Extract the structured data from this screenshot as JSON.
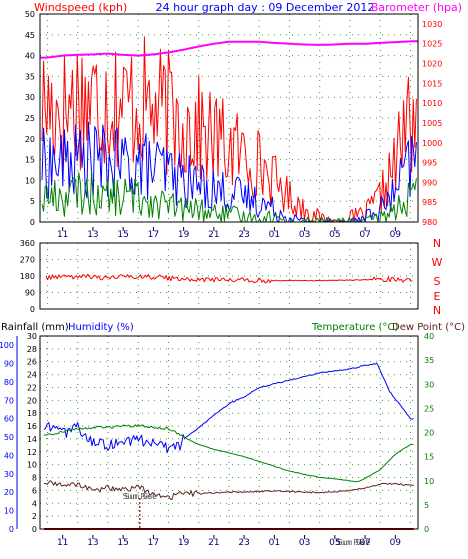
{
  "chart_data": [
    {
      "type": "line",
      "title": "24 hour graph day : 09 December 2012",
      "left_axis_label": "Windspeed (kph)",
      "right_axis_label": "Barometer (hpa)",
      "x_tick_labels": [
        "11",
        "13",
        "15",
        "17",
        "19",
        "21",
        "23",
        "01",
        "03",
        "05",
        "07",
        "09"
      ],
      "y_left_ticks": [
        0,
        5,
        10,
        15,
        20,
        25,
        30,
        35,
        40,
        45,
        50
      ],
      "y_left_range": [
        0,
        50
      ],
      "y_right_ticks": [
        980,
        985,
        990,
        995,
        1000,
        1005,
        1010,
        1015,
        1020,
        1025,
        1030
      ],
      "y_right_range": [
        980,
        1032.5
      ],
      "grid": true,
      "series": [
        {
          "role": "gust",
          "color": "#ff0000",
          "x": [
            0,
            1,
            2,
            3,
            4,
            5,
            6,
            7,
            8,
            9,
            10,
            11,
            12,
            13,
            14,
            15,
            16,
            17,
            18,
            19,
            20,
            21,
            22,
            23,
            24
          ],
          "values": [
            28,
            27,
            30,
            29,
            30,
            28,
            29,
            27,
            26,
            24,
            22,
            20,
            18,
            16,
            14,
            10,
            6,
            3,
            1,
            0,
            1,
            2,
            6,
            14,
            26
          ]
        },
        {
          "role": "average",
          "color": "#0000ff",
          "x": [
            0,
            1,
            2,
            3,
            4,
            5,
            6,
            7,
            8,
            9,
            10,
            11,
            12,
            13,
            14,
            15,
            16,
            17,
            18,
            19,
            20,
            21,
            22,
            23,
            24
          ],
          "values": [
            14,
            14,
            15,
            15,
            14,
            14,
            14,
            13,
            12,
            10,
            9,
            8,
            7,
            6,
            5,
            3,
            1,
            0,
            0,
            0,
            0,
            1,
            3,
            7,
            14
          ]
        },
        {
          "role": "lull",
          "color": "#008000",
          "x": [
            0,
            1,
            2,
            3,
            4,
            5,
            6,
            7,
            8,
            9,
            10,
            11,
            12,
            13,
            14,
            15,
            16,
            17,
            18,
            19,
            20,
            21,
            22,
            23,
            24
          ],
          "values": [
            6,
            6,
            7,
            7,
            6,
            6,
            6,
            5,
            4,
            3,
            3,
            2,
            2,
            1,
            1,
            1,
            0,
            0,
            0,
            0,
            0,
            0,
            1,
            3,
            6
          ]
        },
        {
          "role": "barometer",
          "color": "#ff00ff",
          "axis": "right",
          "x": [
            0,
            1,
            2,
            3,
            4,
            5,
            6,
            7,
            8,
            9,
            10,
            11,
            12,
            13,
            14,
            15,
            16,
            17,
            18,
            19,
            20,
            21,
            22,
            23,
            24
          ],
          "values": [
            1021.5,
            1022,
            1022.2,
            1022.3,
            1022.5,
            1022.2,
            1022,
            1022.3,
            1022.8,
            1023.5,
            1024.3,
            1025,
            1025.5,
            1025.5,
            1025.5,
            1025.2,
            1025,
            1024.8,
            1024.7,
            1024.8,
            1025,
            1025,
            1025.2,
            1025.4,
            1025.6
          ]
        }
      ]
    },
    {
      "type": "line",
      "y_ticks": [
        0,
        90,
        180,
        270,
        360
      ],
      "y_range": [
        0,
        360
      ],
      "compass_labels": [
        "N",
        "W",
        "S",
        "E",
        "N"
      ],
      "grid": true,
      "series": [
        {
          "role": "wind_direction",
          "color": "#ff0000",
          "x": [
            0,
            2,
            4,
            6,
            8,
            10,
            12,
            14,
            16,
            18,
            20,
            22,
            24
          ],
          "values": [
            175,
            178,
            172,
            180,
            168,
            160,
            162,
            155,
            155,
            155,
            157,
            162,
            158
          ]
        }
      ]
    },
    {
      "type": "line",
      "left_axis_label": "Rainfall (mm)",
      "middle_axis_label": "Humidity (%)",
      "right_axis_label": "Temperature (°C)",
      "right2_axis_label": "Dew Point (°C)",
      "x_tick_labels": [
        "11",
        "13",
        "15",
        "17",
        "19",
        "21",
        "23",
        "01",
        "03",
        "05",
        "07",
        "09"
      ],
      "rain_ticks": [
        0,
        2,
        4,
        6,
        8,
        10,
        12,
        14,
        16,
        18,
        20,
        22,
        24,
        26,
        28,
        30
      ],
      "rain_range": [
        0,
        30
      ],
      "humidity_ticks": [
        0,
        10,
        20,
        30,
        40,
        50,
        60,
        70,
        80,
        90,
        100
      ],
      "humidity_range": [
        0,
        105
      ],
      "temp_ticks": [
        0,
        5,
        10,
        15,
        20,
        25,
        30,
        35,
        40
      ],
      "temp_range": [
        0,
        40
      ],
      "annotations": [
        "Sun Set",
        "Sun Rise",
        "Sun Set",
        "Sun Rise"
      ],
      "annotation_hours": [
        6.1,
        6.1,
        20.2,
        20.2
      ],
      "grid": true,
      "series": [
        {
          "role": "humidity",
          "color": "#0000ff",
          "axis": "humidity",
          "x": [
            0,
            1,
            2,
            3,
            4,
            5,
            6,
            7,
            8,
            8.7,
            9,
            10,
            11,
            12,
            13,
            14,
            15,
            16,
            17,
            18,
            19,
            20,
            21,
            21.8,
            22.6,
            24
          ],
          "values": [
            55,
            52,
            55,
            48,
            45,
            48,
            49,
            47,
            44,
            45,
            49,
            55,
            62,
            68,
            72,
            77,
            79,
            81,
            83,
            85,
            86,
            87,
            89,
            90,
            75,
            60
          ]
        },
        {
          "role": "temperature",
          "color": "#008000",
          "axis": "temp",
          "x": [
            0,
            1,
            2,
            3,
            4,
            5,
            6,
            7,
            8,
            9,
            10,
            11,
            12,
            13,
            14,
            15,
            16,
            17,
            18,
            19,
            20,
            20.5,
            21,
            22,
            23,
            24
          ],
          "values": [
            19.5,
            20.2,
            20.8,
            21,
            21.1,
            21.3,
            21.4,
            21.1,
            20.8,
            19,
            17.5,
            16.5,
            15.8,
            15,
            14,
            13,
            12,
            11.3,
            10.7,
            10.4,
            10,
            9.8,
            10.5,
            12.3,
            15.5,
            17.5
          ]
        },
        {
          "role": "dew_point",
          "color": "#602020",
          "axis": "temp",
          "x": [
            0,
            1,
            2,
            3,
            4,
            5,
            6,
            7,
            8,
            9,
            10,
            11,
            12,
            13,
            14,
            15,
            16,
            17,
            18,
            19,
            20,
            21,
            22,
            23,
            24
          ],
          "values": [
            9.5,
            9.2,
            9.3,
            8,
            8.5,
            8,
            8.8,
            7,
            6.5,
            7.4,
            7.3,
            7.5,
            7.7,
            7.6,
            7.8,
            7.8,
            7.8,
            7.6,
            7.6,
            7.7,
            8,
            8.5,
            9.3,
            9.4,
            9
          ]
        },
        {
          "role": "rainfall",
          "color": "#990000",
          "axis": "rain",
          "x": [
            0,
            24
          ],
          "values": [
            0,
            0
          ]
        }
      ]
    }
  ]
}
